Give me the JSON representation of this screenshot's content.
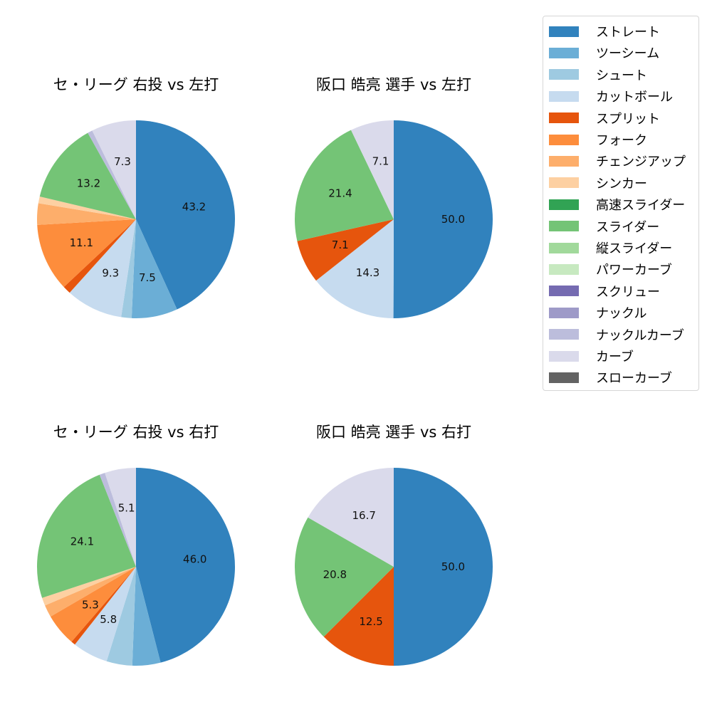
{
  "legend": {
    "items": [
      {
        "label": "ストレート",
        "color": "#3182bd"
      },
      {
        "label": "ツーシーム",
        "color": "#6baed6"
      },
      {
        "label": "シュート",
        "color": "#9ecae1"
      },
      {
        "label": "カットボール",
        "color": "#c6dbef"
      },
      {
        "label": "スプリット",
        "color": "#e6550d"
      },
      {
        "label": "フォーク",
        "color": "#fd8d3c"
      },
      {
        "label": "チェンジアップ",
        "color": "#fdae6b"
      },
      {
        "label": "シンカー",
        "color": "#fdd0a2"
      },
      {
        "label": "高速スライダー",
        "color": "#31a354"
      },
      {
        "label": "スライダー",
        "color": "#74c476"
      },
      {
        "label": "縦スライダー",
        "color": "#a1d99b"
      },
      {
        "label": "パワーカーブ",
        "color": "#c7e9c0"
      },
      {
        "label": "スクリュー",
        "color": "#756bb1"
      },
      {
        "label": "ナックル",
        "color": "#9e9ac8"
      },
      {
        "label": "ナックルカーブ",
        "color": "#bcbddc"
      },
      {
        "label": "カーブ",
        "color": "#dadaeb"
      },
      {
        "label": "スローカーブ",
        "color": "#636363"
      }
    ]
  },
  "chart_data": [
    {
      "type": "pie",
      "title": "セ・リーグ 右投 vs 左打",
      "start_angle": 90,
      "direction": "clockwise",
      "label_threshold": 5,
      "slices": [
        {
          "label": "ストレート",
          "value": 43.2,
          "color": "#3182bd"
        },
        {
          "label": "ツーシーム",
          "value": 7.5,
          "color": "#6baed6"
        },
        {
          "label": "シュート",
          "value": 1.7,
          "color": "#9ecae1"
        },
        {
          "label": "カットボール",
          "value": 9.3,
          "color": "#c6dbef"
        },
        {
          "label": "スプリット",
          "value": 1.3,
          "color": "#e6550d"
        },
        {
          "label": "フォーク",
          "value": 11.1,
          "color": "#fd8d3c"
        },
        {
          "label": "チェンジアップ",
          "value": 3.5,
          "color": "#fdae6b"
        },
        {
          "label": "シンカー",
          "value": 1.1,
          "color": "#fdd0a2"
        },
        {
          "label": "スライダー",
          "value": 13.2,
          "color": "#74c476"
        },
        {
          "label": "ナックルカーブ",
          "value": 0.8,
          "color": "#bcbddc"
        },
        {
          "label": "カーブ",
          "value": 7.3,
          "color": "#dadaeb"
        }
      ]
    },
    {
      "type": "pie",
      "title": "阪口 皓亮 選手 vs 左打",
      "start_angle": 90,
      "direction": "clockwise",
      "label_threshold": 5,
      "slices": [
        {
          "label": "ストレート",
          "value": 50.0,
          "color": "#3182bd"
        },
        {
          "label": "カットボール",
          "value": 14.3,
          "color": "#c6dbef"
        },
        {
          "label": "スプリット",
          "value": 7.1,
          "color": "#e6550d"
        },
        {
          "label": "スライダー",
          "value": 21.4,
          "color": "#74c476"
        },
        {
          "label": "カーブ",
          "value": 7.1,
          "color": "#dadaeb"
        }
      ]
    },
    {
      "type": "pie",
      "title": "セ・リーグ 右投 vs 右打",
      "start_angle": 90,
      "direction": "clockwise",
      "label_threshold": 5,
      "slices": [
        {
          "label": "ストレート",
          "value": 46.0,
          "color": "#3182bd"
        },
        {
          "label": "ツーシーム",
          "value": 4.6,
          "color": "#6baed6"
        },
        {
          "label": "シュート",
          "value": 4.2,
          "color": "#9ecae1"
        },
        {
          "label": "カットボール",
          "value": 5.8,
          "color": "#c6dbef"
        },
        {
          "label": "スプリット",
          "value": 0.7,
          "color": "#e6550d"
        },
        {
          "label": "フォーク",
          "value": 5.3,
          "color": "#fd8d3c"
        },
        {
          "label": "チェンジアップ",
          "value": 2.0,
          "color": "#fdae6b"
        },
        {
          "label": "シンカー",
          "value": 1.3,
          "color": "#fdd0a2"
        },
        {
          "label": "スライダー",
          "value": 24.1,
          "color": "#74c476"
        },
        {
          "label": "ナックルカーブ",
          "value": 0.9,
          "color": "#bcbddc"
        },
        {
          "label": "カーブ",
          "value": 5.1,
          "color": "#dadaeb"
        }
      ]
    },
    {
      "type": "pie",
      "title": "阪口 皓亮 選手 vs 右打",
      "start_angle": 90,
      "direction": "clockwise",
      "label_threshold": 5,
      "slices": [
        {
          "label": "ストレート",
          "value": 50.0,
          "color": "#3182bd"
        },
        {
          "label": "スプリット",
          "value": 12.5,
          "color": "#e6550d"
        },
        {
          "label": "スライダー",
          "value": 20.8,
          "color": "#74c476"
        },
        {
          "label": "カーブ",
          "value": 16.7,
          "color": "#dadaeb"
        }
      ]
    }
  ]
}
